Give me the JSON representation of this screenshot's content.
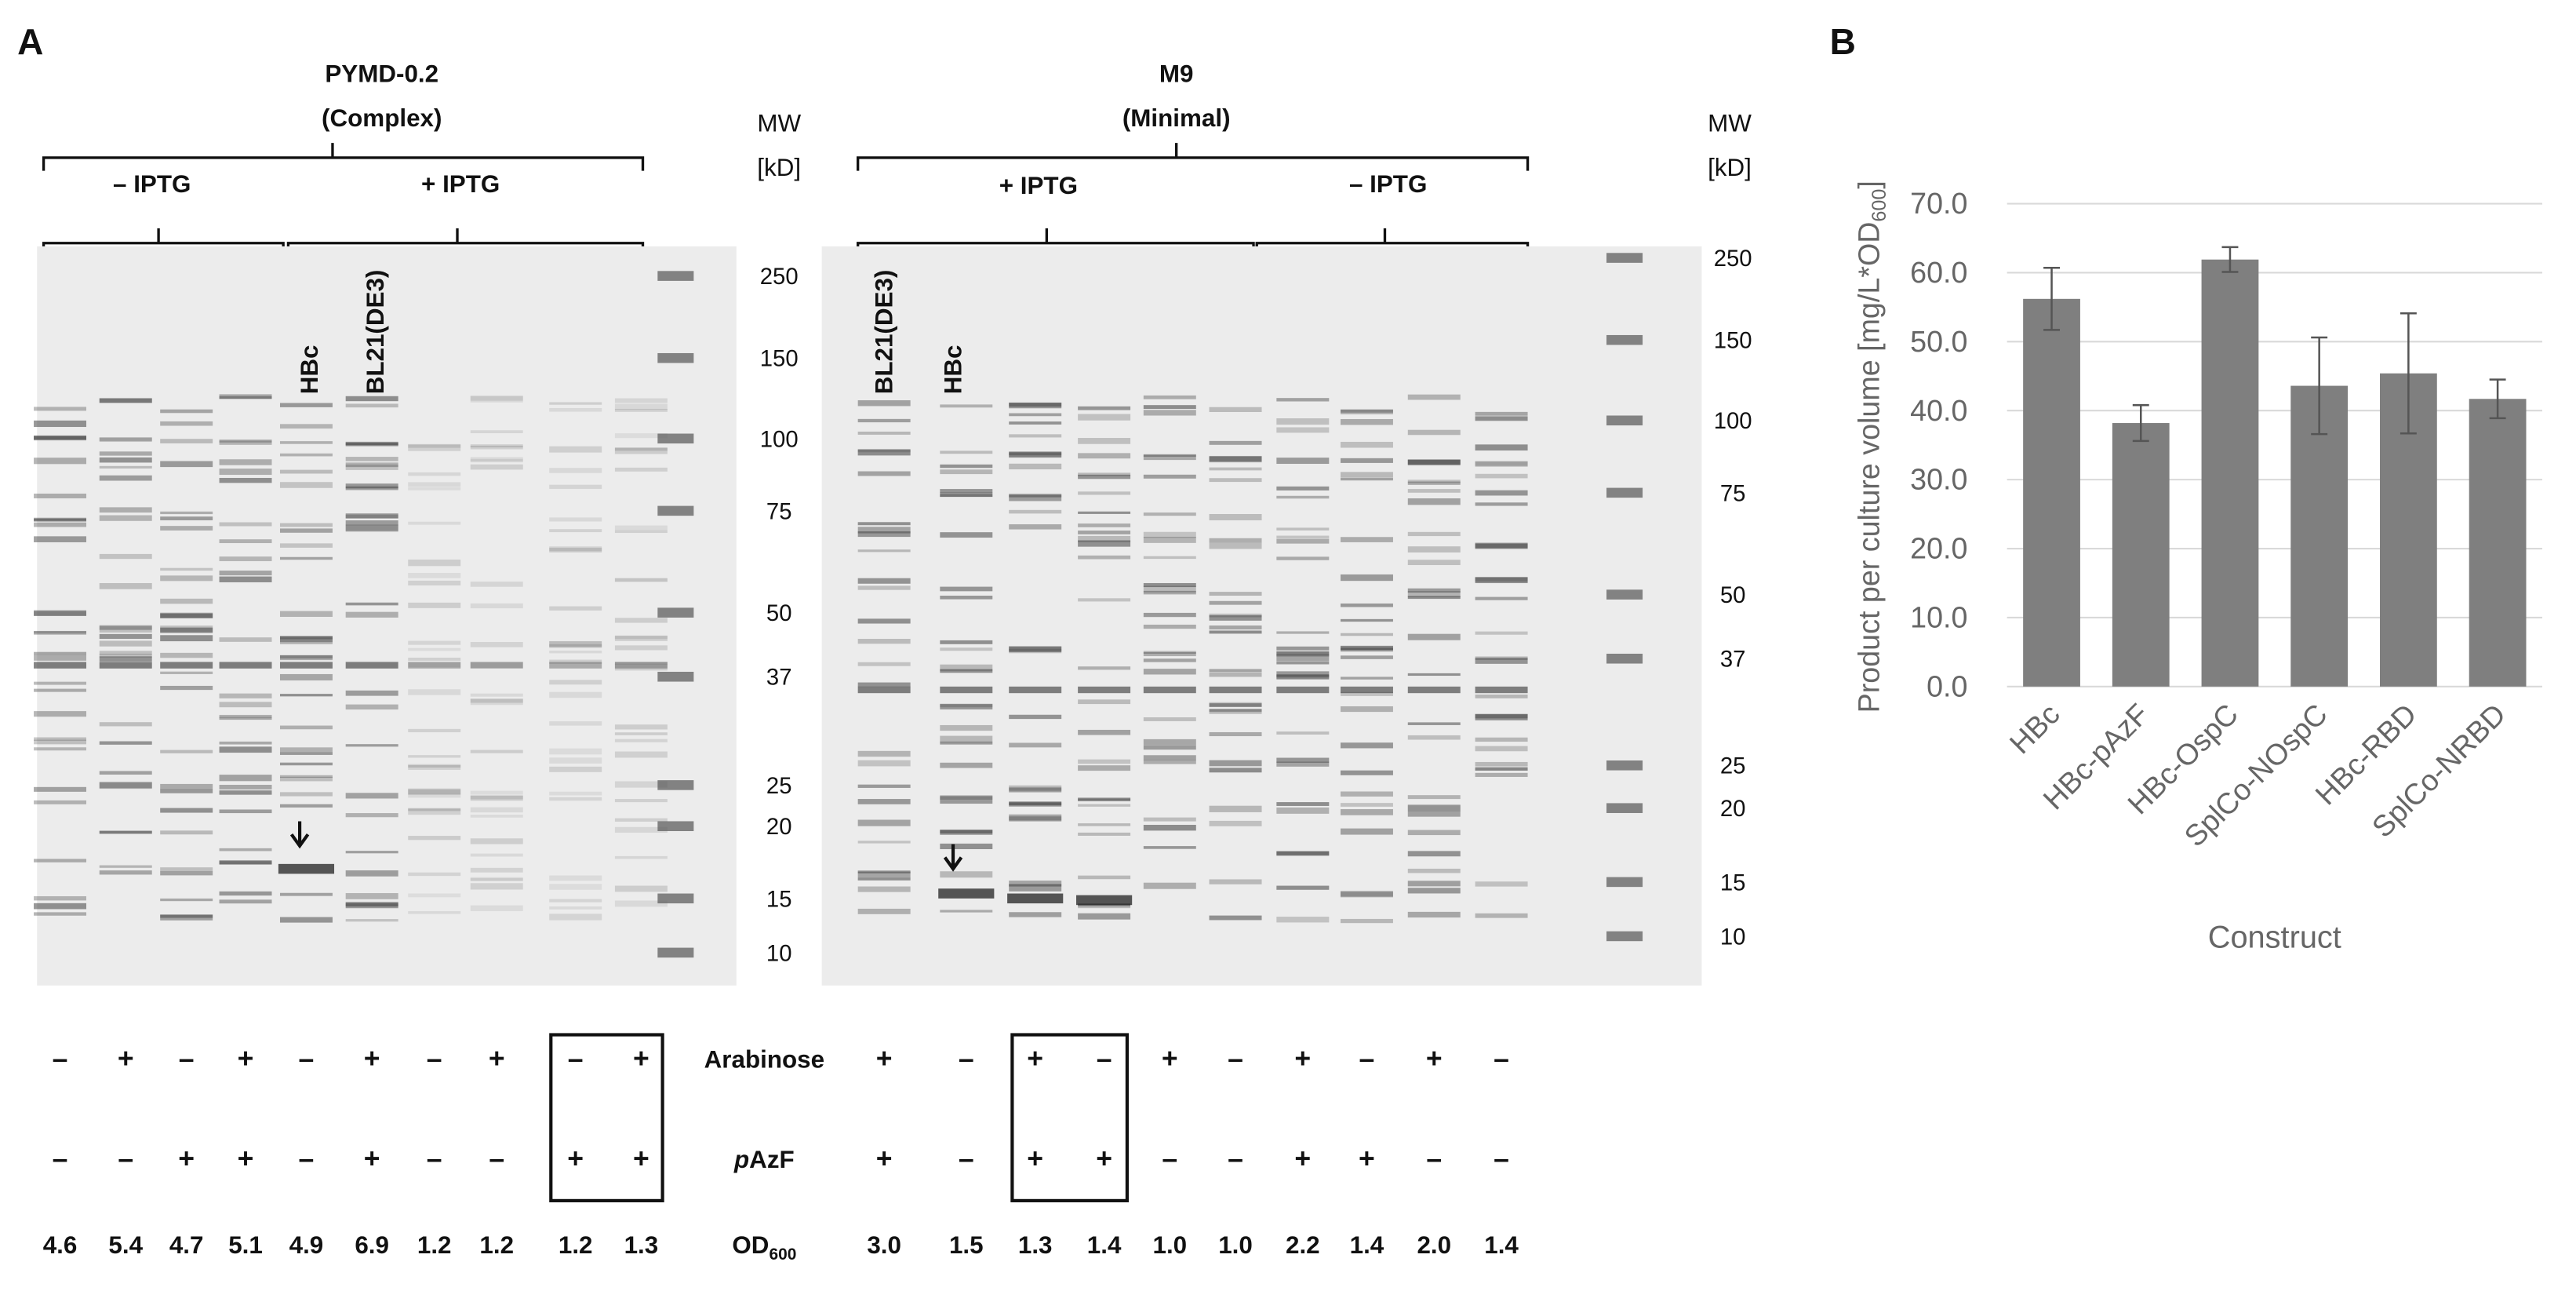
{
  "panel_a": {
    "label": "A",
    "gels": [
      {
        "title": "PYMD-0.2",
        "subtitle": "(Complex)",
        "groups": [
          "– IPTG",
          "+ IPTG"
        ],
        "lane_labels": [
          "HBc",
          "BL21(DE3)"
        ],
        "mw_header": [
          "MW",
          "[kD]"
        ],
        "mw_markers": [
          "250",
          "150",
          "100",
          "75",
          "50",
          "37",
          "25",
          "20",
          "15",
          "10"
        ]
      },
      {
        "title": "M9",
        "subtitle": "(Minimal)",
        "groups": [
          "+ IPTG",
          "– IPTG"
        ],
        "lane_labels": [
          "BL21(DE3)",
          "HBc"
        ],
        "mw_header": [
          "MW",
          "[kD]"
        ],
        "mw_markers": [
          "250",
          "150",
          "100",
          "75",
          "50",
          "37",
          "25",
          "20",
          "15",
          "10"
        ]
      }
    ],
    "rows": [
      {
        "label": [
          "Arabinose"
        ],
        "left": [
          "–",
          "+",
          "–",
          "+",
          "–",
          "+",
          "–",
          "+",
          "–",
          "+"
        ],
        "right": [
          "+",
          "–",
          "+",
          "–",
          "+",
          "–",
          "+",
          "–",
          "+",
          "–"
        ]
      },
      {
        "label": [
          "p",
          "AzF"
        ],
        "left": [
          "–",
          "–",
          "+",
          "+",
          "–",
          "+",
          "–",
          "–",
          "+",
          "+"
        ],
        "right": [
          "+",
          "–",
          "+",
          "+",
          "–",
          "–",
          "+",
          "+",
          "–",
          "–"
        ]
      },
      {
        "label": [
          "OD",
          "600"
        ],
        "left": [
          "4.6",
          "5.4",
          "4.7",
          "5.1",
          "4.9",
          "6.9",
          "1.2",
          "1.2",
          "1.2",
          "1.3"
        ],
        "right": [
          "3.0",
          "1.5",
          "1.3",
          "1.4",
          "1.0",
          "1.0",
          "2.2",
          "1.4",
          "2.0",
          "1.4"
        ]
      }
    ]
  },
  "chart_data": {
    "type": "bar",
    "panel_label": "B",
    "categories": [
      "HBc",
      "HBc-pAzF",
      "HBc-OspC",
      "SplCo-NOspC",
      "HBc-RBD",
      "SplCo-NRBD"
    ],
    "values": [
      56.2,
      38.2,
      61.9,
      43.6,
      45.4,
      41.7
    ],
    "errors": [
      4.5,
      2.6,
      1.8,
      7.0,
      8.7,
      2.8
    ],
    "color": "#7f7f7f",
    "y_label": [
      "Product per culture volume [mg/L*OD",
      "600",
      "]"
    ],
    "x_label": "Construct",
    "ylim": [
      0,
      70
    ],
    "yticks": [
      {
        "value": 0,
        "label": "0.0"
      },
      {
        "value": 10,
        "label": "10.0"
      },
      {
        "value": 20,
        "label": "20.0"
      },
      {
        "value": 30,
        "label": "30.0"
      },
      {
        "value": 40,
        "label": "40.0"
      },
      {
        "value": 50,
        "label": "50.0"
      },
      {
        "value": 60,
        "label": "60.0"
      },
      {
        "value": 70,
        "label": "70.0"
      }
    ],
    "grid": true
  }
}
